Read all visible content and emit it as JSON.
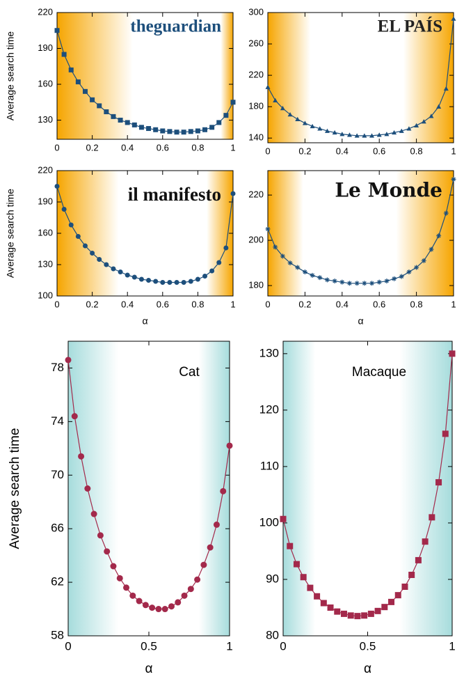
{
  "chart_data": [
    {
      "type": "line",
      "marker": "square",
      "color": "#1d4f7c",
      "background_color": "#f6a500",
      "annotation": "theguardian",
      "annotation_color": "#1d4f7c",
      "y_label": "Average search time",
      "x": [
        0,
        0.04,
        0.08,
        0.12,
        0.16,
        0.2,
        0.24,
        0.28,
        0.32,
        0.36,
        0.4,
        0.44,
        0.48,
        0.52,
        0.56,
        0.6,
        0.64,
        0.68,
        0.72,
        0.76,
        0.8,
        0.84,
        0.88,
        0.92,
        0.96,
        1
      ],
      "values": [
        205,
        185,
        172,
        162,
        154,
        147,
        142,
        137,
        133,
        130,
        128,
        126,
        124,
        123,
        122,
        121,
        120.5,
        120,
        120,
        120.5,
        121,
        122,
        124,
        128,
        134,
        145
      ],
      "xlim": [
        0,
        1
      ],
      "xticks": [
        0,
        0.2,
        0.4,
        0.6,
        0.8,
        1
      ],
      "ylim": [
        114,
        220
      ],
      "yticks": [
        130,
        160,
        190,
        220
      ]
    },
    {
      "type": "line",
      "marker": "triangle",
      "color": "#1d4f7c",
      "background_color": "#f6a500",
      "annotation": "EL PAÍS",
      "annotation_color": "#222222",
      "x": [
        0,
        0.04,
        0.08,
        0.12,
        0.16,
        0.2,
        0.24,
        0.28,
        0.32,
        0.36,
        0.4,
        0.44,
        0.48,
        0.52,
        0.56,
        0.6,
        0.64,
        0.68,
        0.72,
        0.76,
        0.8,
        0.84,
        0.88,
        0.92,
        0.96,
        1
      ],
      "values": [
        205,
        188,
        178,
        170,
        164,
        159,
        155,
        152,
        149,
        147,
        145,
        144,
        143,
        143,
        143,
        144,
        145,
        147,
        149,
        152,
        156,
        161,
        168,
        180,
        203,
        292
      ],
      "xlim": [
        0,
        1
      ],
      "xticks": [
        0,
        0.2,
        0.4,
        0.6,
        0.8,
        1
      ],
      "ylim": [
        134,
        300
      ],
      "yticks": [
        140,
        180,
        220,
        260,
        300
      ]
    },
    {
      "type": "line",
      "marker": "circle",
      "color": "#1d4f7c",
      "background_color": "#f6a500",
      "annotation": "il manifesto",
      "annotation_color": "#111111",
      "y_label": "Average search time",
      "x_label": "α",
      "x": [
        0,
        0.04,
        0.08,
        0.12,
        0.16,
        0.2,
        0.24,
        0.28,
        0.32,
        0.36,
        0.4,
        0.44,
        0.48,
        0.52,
        0.56,
        0.6,
        0.64,
        0.68,
        0.72,
        0.76,
        0.8,
        0.84,
        0.88,
        0.92,
        0.96,
        1
      ],
      "values": [
        205,
        183,
        168,
        157,
        148,
        141,
        135,
        130,
        126,
        123,
        120,
        118,
        116,
        115,
        114,
        113,
        113,
        113,
        113,
        114,
        116,
        119,
        124,
        132,
        146,
        198
      ],
      "xlim": [
        0,
        1
      ],
      "xticks": [
        0,
        0.2,
        0.4,
        0.6,
        0.8,
        1
      ],
      "ylim": [
        100,
        220
      ],
      "yticks": [
        100,
        130,
        160,
        190,
        220
      ]
    },
    {
      "type": "line",
      "marker": "star",
      "color": "#1d4f7c",
      "background_color": "#f6a500",
      "annotation": "Le Monde",
      "annotation_color": "#111111",
      "x_label": "α",
      "x": [
        0,
        0.04,
        0.08,
        0.12,
        0.16,
        0.2,
        0.24,
        0.28,
        0.32,
        0.36,
        0.4,
        0.44,
        0.48,
        0.52,
        0.56,
        0.6,
        0.64,
        0.68,
        0.72,
        0.76,
        0.8,
        0.84,
        0.88,
        0.92,
        0.96,
        1
      ],
      "values": [
        205,
        197,
        193,
        190,
        188,
        186,
        184.5,
        183.5,
        182.5,
        182,
        181.5,
        181,
        181,
        181,
        181,
        181.5,
        182,
        183,
        184,
        186,
        188,
        191,
        196,
        202,
        212,
        227
      ],
      "xlim": [
        0,
        1
      ],
      "xticks": [
        0,
        0.2,
        0.4,
        0.6,
        0.8,
        1
      ],
      "ylim": [
        175.4,
        230.8
      ],
      "yticks": [
        180,
        200,
        220
      ]
    },
    {
      "type": "line",
      "marker": "circle",
      "color": "#a3294b",
      "background_color": "#a6dcdc",
      "annotation": "Cat",
      "annotation_color": "#000000",
      "y_label": "Average search time",
      "x_label": "α",
      "x": [
        0,
        0.04,
        0.08,
        0.12,
        0.16,
        0.2,
        0.24,
        0.28,
        0.32,
        0.36,
        0.4,
        0.44,
        0.48,
        0.52,
        0.56,
        0.6,
        0.64,
        0.68,
        0.72,
        0.76,
        0.8,
        0.84,
        0.88,
        0.92,
        0.96,
        1
      ],
      "values": [
        78.6,
        74.4,
        71.4,
        69.0,
        67.1,
        65.5,
        64.3,
        63.2,
        62.3,
        61.6,
        61.0,
        60.6,
        60.3,
        60.1,
        60.0,
        60.0,
        60.2,
        60.5,
        61.0,
        61.5,
        62.2,
        63.3,
        64.6,
        66.3,
        68.8,
        72.2
      ],
      "xlim": [
        0,
        1
      ],
      "xticks": [
        0,
        0.5,
        1
      ],
      "ylim": [
        58,
        80
      ],
      "yticks": [
        58,
        62,
        66,
        70,
        74,
        78
      ]
    },
    {
      "type": "line",
      "marker": "square",
      "color": "#a3294b",
      "background_color": "#a6dcdc",
      "annotation": "Macaque",
      "annotation_color": "#000000",
      "x_label": "α",
      "x": [
        0,
        0.04,
        0.08,
        0.12,
        0.16,
        0.2,
        0.24,
        0.28,
        0.32,
        0.36,
        0.4,
        0.44,
        0.48,
        0.52,
        0.56,
        0.6,
        0.64,
        0.68,
        0.72,
        0.76,
        0.8,
        0.84,
        0.88,
        0.92,
        0.96,
        1
      ],
      "values": [
        100.7,
        95.9,
        92.7,
        90.4,
        88.5,
        87.0,
        85.8,
        85.0,
        84.3,
        83.9,
        83.6,
        83.5,
        83.6,
        83.9,
        84.4,
        85.1,
        86.0,
        87.2,
        88.7,
        90.8,
        93.4,
        96.7,
        101.0,
        107.2,
        115.8,
        130.0
      ],
      "xlim": [
        0,
        1
      ],
      "xticks": [
        0,
        0.5,
        1
      ],
      "ylim": [
        80,
        132.2
      ],
      "yticks": [
        80,
        90,
        100,
        110,
        120,
        130
      ]
    }
  ]
}
